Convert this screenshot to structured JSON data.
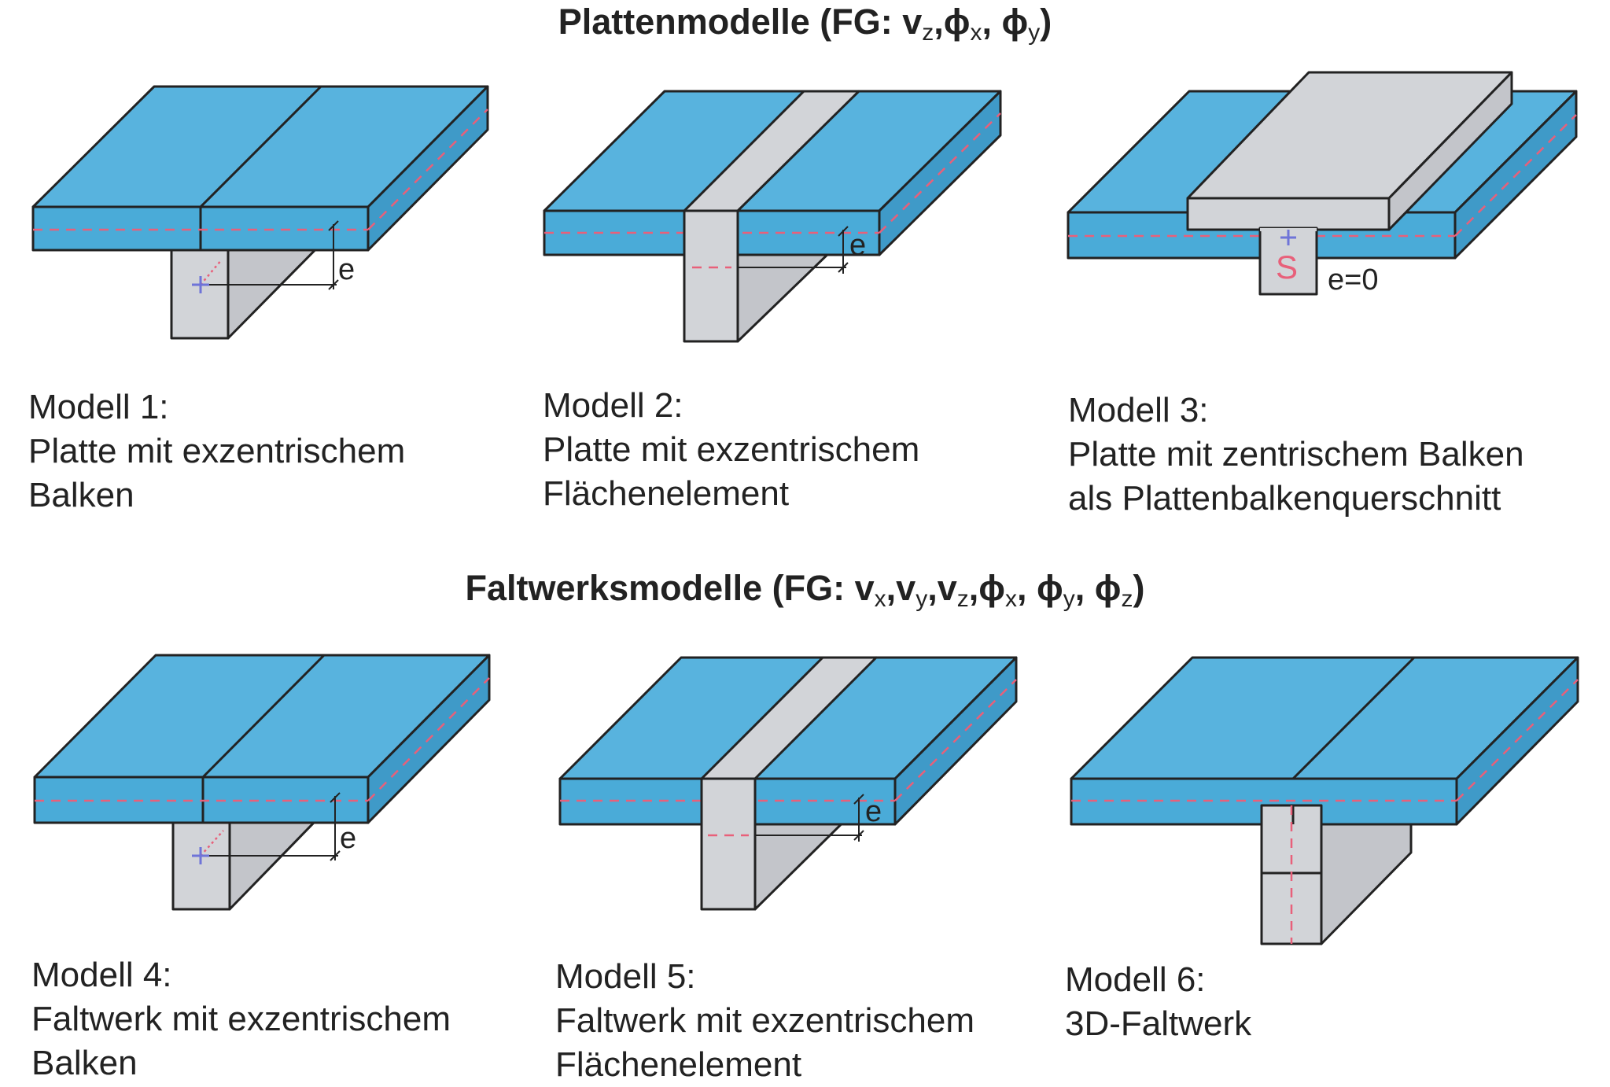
{
  "headings": {
    "plates": {
      "prefix": "Plattenmodelle (FG: ",
      "vz": "v",
      "vz_sub": "z",
      "sep1": ",",
      "phi": "ϕ",
      "phix_sub": "x",
      "sep2": ", ",
      "phiy_sub": "y",
      "suffix": ")"
    },
    "folded": {
      "prefix": "Faltwerksmodelle (FG: ",
      "v": "v",
      "x": "x",
      "y": "y",
      "z": "z",
      "phi": "ϕ",
      "comma": ",",
      "commasp": ", ",
      "suffix": ")"
    }
  },
  "models": [
    {
      "title": "Modell 1:",
      "line1": "Platte mit exzentrischem",
      "line2": "Balken"
    },
    {
      "title": "Modell 2:",
      "line1": "Platte mit exzentrischem",
      "line2": "Flächenelement"
    },
    {
      "title": "Modell 3:",
      "line1": "Platte mit zentrischem Balken",
      "line2": "als Plattenbalkenquerschnitt"
    },
    {
      "title": "Modell 4:",
      "line1": "Faltwerk mit exzentrischem",
      "line2": "Balken"
    },
    {
      "title": "Modell 5:",
      "line1": "Faltwerk mit exzentrischem",
      "line2": "Flächenelement"
    },
    {
      "title": "Modell 6:",
      "line1": "3D-Faltwerk",
      "line2": ""
    }
  ],
  "labels": {
    "eccentricity": "e",
    "centroid": "S",
    "zero_eccentricity": "e=0"
  },
  "colors": {
    "plate_blue": "#58b3de",
    "web_grey": "#d2d4d8",
    "centroid_line_red": "#e8607a",
    "node_marker_blue": "#6f74d8"
  }
}
